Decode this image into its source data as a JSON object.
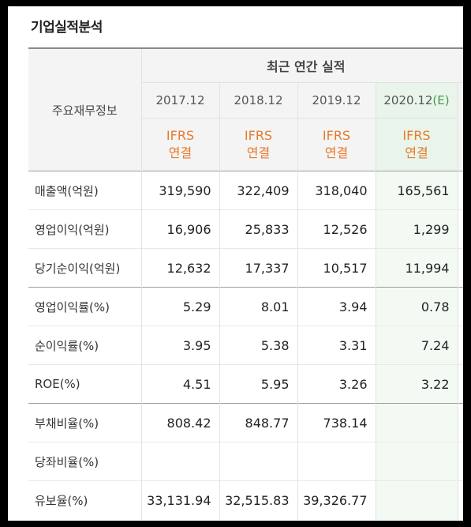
{
  "section_title": "기업실적분석",
  "header": {
    "label": "주요재무정보",
    "group": "최근 연간 실적",
    "years": [
      {
        "label": "2017.12",
        "mark": ""
      },
      {
        "label": "2018.12",
        "mark": ""
      },
      {
        "label": "2019.12",
        "mark": ""
      },
      {
        "label": "2020.12",
        "mark": "(E)"
      }
    ],
    "ifrs": [
      "IFRS",
      "연결"
    ]
  },
  "rows": [
    {
      "label": "매출액(억원)",
      "values": [
        "319,590",
        "322,409",
        "318,040",
        "165,561"
      ]
    },
    {
      "label": "영업이익(억원)",
      "values": [
        "16,906",
        "25,833",
        "12,526",
        "1,299"
      ]
    },
    {
      "label": "당기순이익(억원)",
      "values": [
        "12,632",
        "17,337",
        "10,517",
        "11,994"
      ]
    },
    {
      "label": "영업이익률(%)",
      "values": [
        "5.29",
        "8.01",
        "3.94",
        "0.78"
      ]
    },
    {
      "label": "순이익률(%)",
      "values": [
        "3.95",
        "5.38",
        "3.31",
        "7.24"
      ]
    },
    {
      "label": "ROE(%)",
      "values": [
        "4.51",
        "5.95",
        "3.26",
        "3.22"
      ]
    },
    {
      "label": "부채비율(%)",
      "values": [
        "808.42",
        "848.77",
        "738.14",
        ""
      ]
    },
    {
      "label": "당좌비율(%)",
      "values": [
        "",
        "",
        "",
        ""
      ]
    },
    {
      "label": "유보율(%)",
      "values": [
        "33,131.94",
        "32,515.83",
        "39,326.77",
        ""
      ]
    }
  ],
  "colors": {
    "ifrs": "#e8792b",
    "estimate_bg": "#e9f5ea",
    "estimate_mark": "#4a9a4a"
  }
}
